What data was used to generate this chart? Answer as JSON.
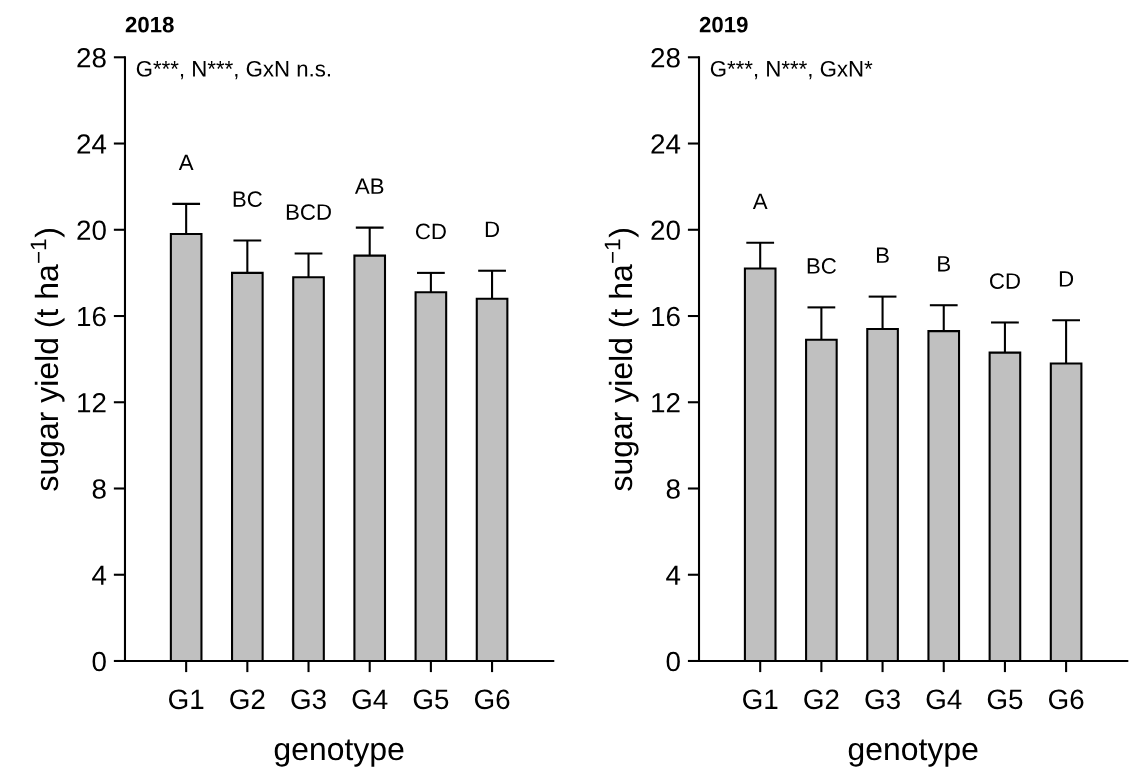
{
  "chart_data": [
    {
      "type": "bar",
      "title": "2018",
      "xlabel": "genotype",
      "ylabel": "sugar yield (t ha$^{−1}$)",
      "categories": [
        "G1",
        "G2",
        "G3",
        "G4",
        "G5",
        "G6"
      ],
      "values": [
        19.8,
        18.0,
        17.8,
        18.8,
        17.1,
        16.8
      ],
      "errors": [
        1.4,
        1.5,
        1.1,
        1.3,
        0.9,
        1.3
      ],
      "color": "#c0c0c0",
      "ylim": [
        0,
        28
      ],
      "yticks": [
        0,
        4,
        8,
        12,
        16,
        20,
        24,
        28
      ],
      "grid": false,
      "legend": false,
      "annotations": [
        "G***, N***, GxN n.s.",
        "A",
        "BC",
        "BCD",
        "AB",
        "CD",
        "D"
      ]
    },
    {
      "type": "bar",
      "title": "2019",
      "xlabel": "genotype",
      "ylabel": "sugar yield (t ha$^{−1}$)",
      "categories": [
        "G1",
        "G2",
        "G3",
        "G4",
        "G5",
        "G6"
      ],
      "values": [
        18.2,
        14.9,
        15.4,
        15.3,
        14.3,
        13.8
      ],
      "errors": [
        1.2,
        1.5,
        1.5,
        1.2,
        1.4,
        2.0
      ],
      "color": "#c0c0c0",
      "ylim": [
        0,
        28
      ],
      "yticks": [
        0,
        4,
        8,
        12,
        16,
        20,
        24,
        28
      ],
      "grid": false,
      "legend": false,
      "annotations": [
        "G***, N***, GxN*",
        "A",
        "BC",
        "B",
        "B",
        "CD",
        "D"
      ]
    }
  ]
}
